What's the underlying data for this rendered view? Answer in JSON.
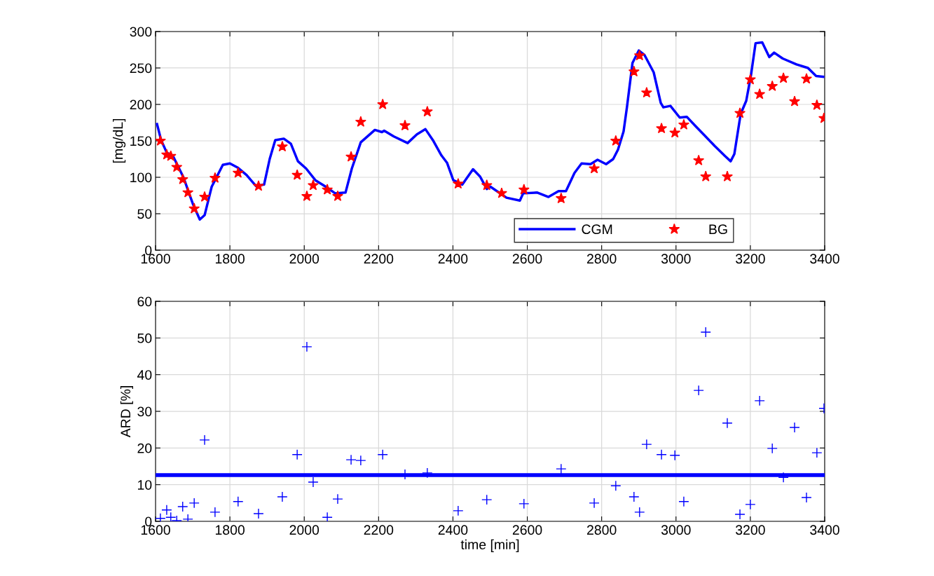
{
  "chart_data": [
    {
      "type": "line",
      "ylabel": "[mg/dL]",
      "xlim": [
        1600,
        3400
      ],
      "xticks": [
        1600,
        1800,
        2000,
        2200,
        2400,
        2600,
        2800,
        3000,
        3200,
        3400
      ],
      "ylim": [
        0,
        300
      ],
      "yticks": [
        0,
        50,
        100,
        150,
        200,
        250,
        300
      ],
      "grid": true,
      "legend": "bottom",
      "series": [
        {
          "name": "CGM",
          "color": "#0000ff",
          "marker": "none",
          "line_style": "solid",
          "x": [
            1604,
            1615,
            1630,
            1647,
            1675,
            1700,
            1719,
            1732,
            1751,
            1781,
            1800,
            1822,
            1845,
            1870,
            1892,
            1907,
            1922,
            1945,
            1964,
            1983,
            2005,
            2030,
            2058,
            2083,
            2111,
            2128,
            2152,
            2190,
            2209,
            2215,
            2241,
            2278,
            2303,
            2326,
            2346,
            2369,
            2384,
            2401,
            2425,
            2454,
            2473,
            2491,
            2501,
            2544,
            2580,
            2589,
            2627,
            2657,
            2684,
            2704,
            2727,
            2746,
            2770,
            2789,
            2812,
            2831,
            2844,
            2859,
            2868,
            2883,
            2900,
            2915,
            2940,
            2959,
            2966,
            2985,
            3010,
            3029,
            3053,
            3076,
            3104,
            3132,
            3147,
            3157,
            3174,
            3189,
            3202,
            3214,
            3232,
            3251,
            3264,
            3287,
            3324,
            3355,
            3377,
            3396
          ],
          "values": [
            173,
            151,
            134,
            129,
            100,
            64,
            42,
            48,
            87,
            117,
            119,
            113,
            103,
            88,
            90,
            125,
            151,
            153,
            146,
            122,
            112,
            96,
            87,
            78,
            79,
            112,
            148,
            165,
            162,
            164,
            156,
            147,
            159,
            166,
            151,
            130,
            120,
            96,
            90,
            111,
            101,
            84,
            87,
            72,
            68,
            78,
            79,
            73,
            81,
            81,
            106,
            119,
            118,
            124,
            118,
            125,
            138,
            163,
            196,
            257,
            274,
            268,
            244,
            202,
            196,
            198,
            182,
            183,
            170,
            158,
            143,
            129,
            122,
            132,
            187,
            205,
            241,
            284,
            285,
            265,
            271,
            263,
            255,
            250,
            239,
            238
          ]
        },
        {
          "name": "BG",
          "type": "scatter",
          "color": "#ff0000",
          "marker": "star",
          "x": [
            1613,
            1630,
            1641,
            1657,
            1673,
            1687,
            1704,
            1732,
            1760,
            1822,
            1877,
            1941,
            1981,
            2007,
            2024,
            2062,
            2090,
            2126,
            2152,
            2211,
            2271,
            2331,
            2414,
            2491,
            2531,
            2591,
            2691,
            2780,
            2838,
            2887,
            2902,
            2921,
            2961,
            2997,
            3021,
            3061,
            3080,
            3138,
            3172,
            3200,
            3225,
            3259,
            3289,
            3319,
            3351,
            3379,
            3398
          ],
          "values": [
            150,
            131,
            129,
            114,
            97,
            79,
            57,
            73,
            99,
            106,
            88,
            142,
            103,
            74,
            89,
            83,
            74,
            128,
            176,
            200,
            171,
            190,
            91,
            89,
            78,
            83,
            71,
            112,
            150,
            245,
            267,
            216,
            167,
            161,
            172,
            123,
            101,
            101,
            188,
            234,
            214,
            225,
            236,
            204,
            235,
            199,
            181
          ]
        }
      ]
    },
    {
      "type": "scatter",
      "xlabel": "time [min]",
      "ylabel": "ARD [%]",
      "xlim": [
        1600,
        3400
      ],
      "xticks": [
        1600,
        1800,
        2000,
        2200,
        2400,
        2600,
        2800,
        3000,
        3200,
        3400
      ],
      "ylim": [
        0,
        60
      ],
      "yticks": [
        0,
        10,
        20,
        30,
        40,
        50,
        60
      ],
      "grid": true,
      "ref_lines": [
        {
          "axis": "y",
          "value": 12.6,
          "color": "#0000ff",
          "line_style": "solid"
        }
      ],
      "series": [
        {
          "color": "#0000ff",
          "marker": "cross",
          "x": [
            1613,
            1630,
            1641,
            1657,
            1673,
            1687,
            1704,
            1732,
            1760,
            1822,
            1877,
            1941,
            1981,
            2007,
            2024,
            2062,
            2090,
            2126,
            2152,
            2211,
            2271,
            2331,
            2414,
            2491,
            2531,
            2591,
            2691,
            2780,
            2838,
            2887,
            2902,
            2921,
            2961,
            2997,
            3021,
            3061,
            3080,
            3138,
            3172,
            3200,
            3225,
            3259,
            3289,
            3319,
            3351,
            3379,
            3398
          ],
          "values": [
            0.8,
            3.1,
            1.1,
            0.2,
            4.0,
            0.6,
            5.0,
            22.2,
            2.5,
            5.4,
            2.1,
            6.7,
            18.2,
            47.6,
            10.7,
            1.1,
            6.1,
            16.8,
            16.6,
            18.2,
            12.8,
            13.2,
            2.9,
            5.9,
            null,
            4.8,
            14.3,
            5.0,
            9.7,
            6.7,
            2.5,
            21.0,
            18.2,
            18.0,
            5.4,
            35.7,
            51.6,
            26.8,
            1.9,
            4.6,
            32.9,
            19.9,
            12.0,
            25.6,
            6.5,
            18.7,
            30.8
          ]
        }
      ]
    }
  ]
}
